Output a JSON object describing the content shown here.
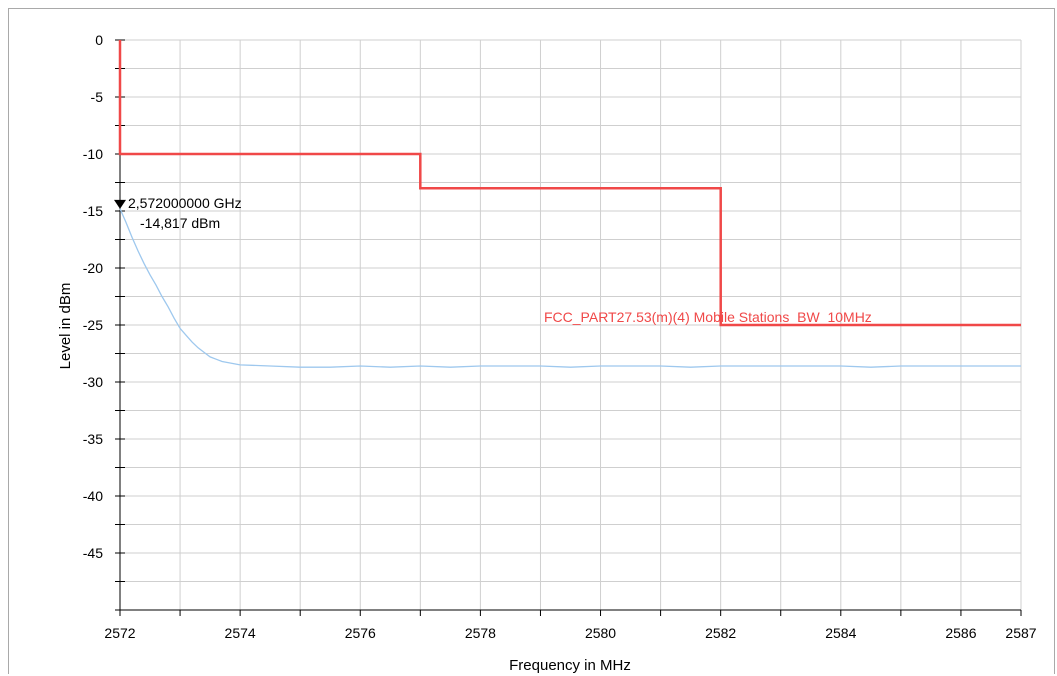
{
  "chart_data": {
    "type": "line",
    "xlabel": "Frequency in MHz",
    "ylabel": "Level in dBm",
    "xlim": [
      2572,
      2587
    ],
    "ylim": [
      -50,
      0
    ],
    "x_ticks": [
      2572,
      2574,
      2576,
      2578,
      2580,
      2582,
      2584,
      2586,
      2587
    ],
    "y_ticks": [
      0,
      -5,
      -10,
      -15,
      -20,
      -25,
      -30,
      -35,
      -40,
      -45
    ],
    "grid": true,
    "series": [
      {
        "name": "",
        "color": "#9ec8ee",
        "points": [
          [
            2572.0,
            -14.8
          ],
          [
            2572.1,
            -16.0
          ],
          [
            2572.2,
            -17.3
          ],
          [
            2572.3,
            -18.5
          ],
          [
            2572.4,
            -19.6
          ],
          [
            2572.5,
            -20.6
          ],
          [
            2572.6,
            -21.5
          ],
          [
            2572.7,
            -22.5
          ],
          [
            2572.8,
            -23.4
          ],
          [
            2572.9,
            -24.4
          ],
          [
            2573.0,
            -25.3
          ],
          [
            2573.1,
            -25.9
          ],
          [
            2573.2,
            -26.5
          ],
          [
            2573.3,
            -27.0
          ],
          [
            2573.4,
            -27.4
          ],
          [
            2573.5,
            -27.8
          ],
          [
            2573.6,
            -28.0
          ],
          [
            2573.7,
            -28.2
          ],
          [
            2573.8,
            -28.3
          ],
          [
            2573.9,
            -28.4
          ],
          [
            2574.0,
            -28.5
          ],
          [
            2574.5,
            -28.6
          ],
          [
            2575.0,
            -28.7
          ],
          [
            2575.5,
            -28.7
          ],
          [
            2576.0,
            -28.6
          ],
          [
            2576.5,
            -28.7
          ],
          [
            2577.0,
            -28.6
          ],
          [
            2577.5,
            -28.7
          ],
          [
            2578.0,
            -28.6
          ],
          [
            2578.5,
            -28.6
          ],
          [
            2579.0,
            -28.6
          ],
          [
            2579.5,
            -28.7
          ],
          [
            2580.0,
            -28.6
          ],
          [
            2580.5,
            -28.6
          ],
          [
            2581.0,
            -28.6
          ],
          [
            2581.5,
            -28.7
          ],
          [
            2582.0,
            -28.6
          ],
          [
            2582.5,
            -28.6
          ],
          [
            2583.0,
            -28.6
          ],
          [
            2583.5,
            -28.6
          ],
          [
            2584.0,
            -28.6
          ],
          [
            2584.5,
            -28.7
          ],
          [
            2585.0,
            -28.6
          ],
          [
            2585.5,
            -28.6
          ],
          [
            2586.0,
            -28.6
          ],
          [
            2586.5,
            -28.6
          ],
          [
            2587.0,
            -28.6
          ]
        ]
      }
    ],
    "limit_line": {
      "name": "FCC_PART27.53(m)(4) Mobile Stations_BW_10MHz",
      "color": "#f04848",
      "points": [
        [
          2572,
          0
        ],
        [
          2572,
          -10
        ],
        [
          2577,
          -10
        ],
        [
          2577,
          -13
        ],
        [
          2582,
          -13
        ],
        [
          2582,
          -25
        ],
        [
          2587,
          -25
        ]
      ]
    },
    "marker": {
      "x": 2572.0,
      "y": -14.817,
      "freq_label": "2,572000000 GHz",
      "level_label": "-14,817 dBm"
    }
  }
}
